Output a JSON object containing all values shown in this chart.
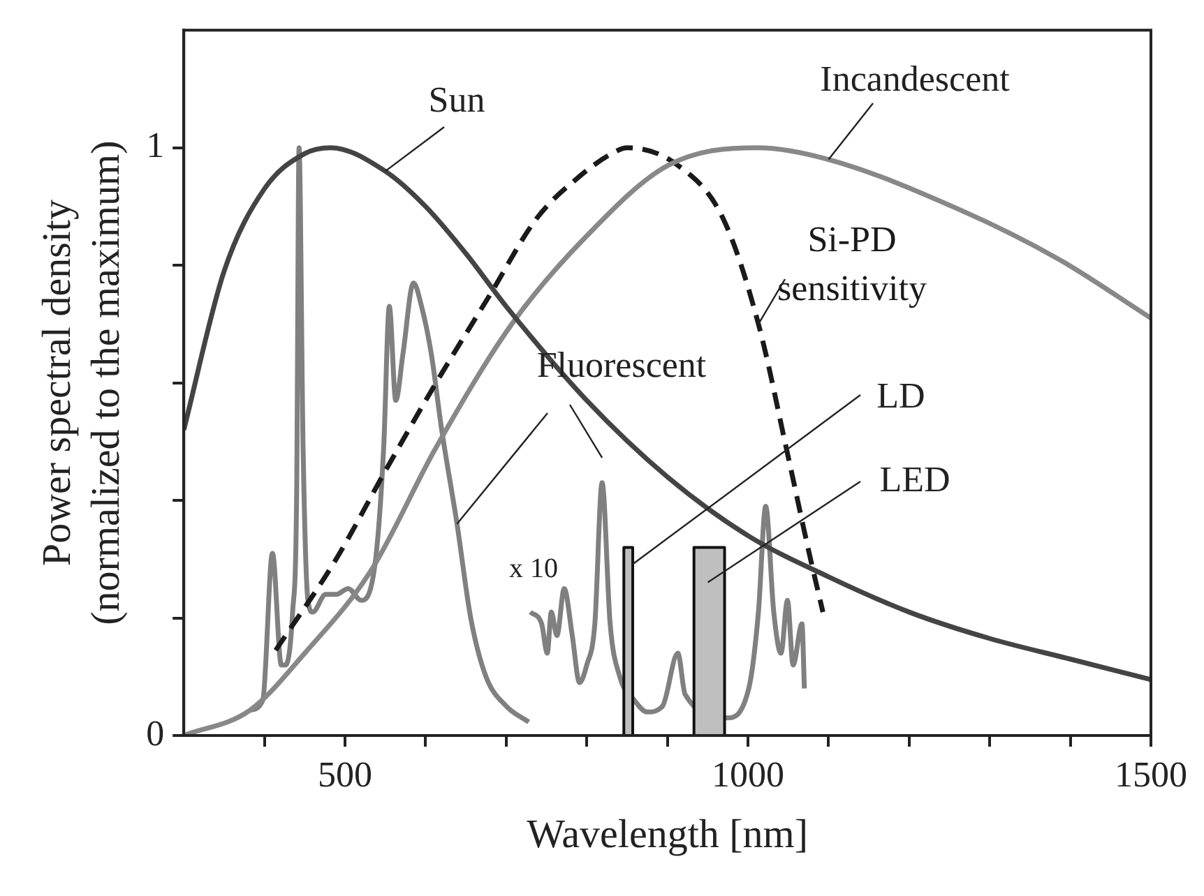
{
  "chart_data": {
    "type": "line",
    "xlabel": "Wavelength [nm]",
    "ylabel": "Power spectral density\n(normalized to the maximum)",
    "xlim": [
      300,
      1500
    ],
    "ylim": [
      0,
      1.2
    ],
    "xticks": [
      {
        "value": 400,
        "label": null
      },
      500,
      {
        "value": 600,
        "label": null
      },
      {
        "value": 700,
        "label": null
      },
      {
        "value": 800,
        "label": null
      },
      {
        "value": 900,
        "label": null
      },
      1000,
      {
        "value": 1100,
        "label": null
      },
      {
        "value": 1200,
        "label": null
      },
      {
        "value": 1300,
        "label": null
      },
      {
        "value": 1400,
        "label": null
      },
      1500
    ],
    "yticks": [
      0,
      {
        "value": 0.2,
        "label": null
      },
      {
        "value": 0.4,
        "label": null
      },
      {
        "value": 0.6,
        "label": null
      },
      {
        "value": 0.8,
        "label": null
      },
      1
    ],
    "grid": false,
    "legend": false,
    "marker": "none",
    "series": [
      {
        "name": "Sun",
        "color": "#444444",
        "x": [
          300,
          350,
          400,
          450,
          482,
          550,
          600,
          650,
          700,
          800,
          900,
          1000,
          1100,
          1200,
          1300,
          1400,
          1500
        ],
        "values": [
          0.52,
          0.79,
          0.93,
          0.99,
          1.0,
          0.96,
          0.9,
          0.82,
          0.73,
          0.57,
          0.44,
          0.34,
          0.27,
          0.21,
          0.165,
          0.13,
          0.095
        ]
      },
      {
        "name": "Incandescent",
        "color": "#888888",
        "x": [
          300,
          382,
          450,
          532,
          613,
          707,
          800,
          901,
          1012,
          1100,
          1262,
          1386,
          1500
        ],
        "values": [
          0,
          0.043,
          0.14,
          0.28,
          0.49,
          0.7,
          0.85,
          0.97,
          1.0,
          0.98,
          0.895,
          0.81,
          0.71
        ]
      },
      {
        "name": "Si-PD\nsensitivity",
        "color": "#1a1a1a",
        "line_style": "dashed",
        "x": [
          414,
          489,
          550,
          613,
          680,
          738,
          790,
          831,
          850,
          913,
          969,
          1013,
          1049,
          1076,
          1093
        ],
        "values": [
          0.145,
          0.3,
          0.45,
          0.6,
          0.75,
          0.88,
          0.95,
          0.99,
          1.0,
          0.97,
          0.88,
          0.7,
          0.48,
          0.31,
          0.21
        ]
      },
      {
        "name": "Fluorescent",
        "color": "#808080",
        "x": [
          382,
          398,
          410,
          421,
          426,
          435,
          440,
          443,
          448,
          454,
          460,
          476,
          489,
          504,
          520,
          538,
          548,
          555,
          563,
          572,
          585,
          595,
          607,
          620,
          639,
          656,
          675,
          700,
          728,
          729,
          730,
          744,
          751,
          756,
          763,
          772,
          782,
          791,
          800,
          810,
          819,
          829,
          841,
          859,
          875,
          894,
          913,
          922,
          974,
          1001,
          1013,
          1022,
          1032,
          1041,
          1049,
          1056,
          1067,
          1070
        ],
        "values": [
          0.043,
          0.06,
          0.31,
          0.12,
          0.12,
          0.21,
          0.41,
          1.0,
          0.49,
          0.23,
          0.21,
          0.24,
          0.24,
          0.25,
          0.23,
          0.3,
          0.49,
          0.73,
          0.57,
          0.65,
          0.77,
          0.73,
          0.65,
          0.52,
          0.36,
          0.2,
          0.1,
          0.05,
          0.023,
          null,
          0.21,
          0.19,
          0.14,
          0.21,
          0.17,
          0.25,
          0.17,
          0.09,
          0.12,
          0.19,
          0.43,
          0.19,
          0.1,
          0.06,
          0.04,
          0.05,
          0.14,
          0.07,
          0.03,
          0.08,
          0.21,
          0.39,
          0.21,
          0.14,
          0.23,
          0.12,
          0.19,
          0.08
        ]
      },
      {
        "name": "LD",
        "type": "area",
        "color": "#bfbfbf",
        "x": [
          846,
          846,
          857,
          857
        ],
        "values": [
          0,
          0.32,
          0.32,
          0
        ]
      },
      {
        "name": "LED",
        "type": "area",
        "color": "#bfbfbf",
        "x": [
          933,
          933,
          971,
          971
        ],
        "values": [
          0,
          0.32,
          0.32,
          0
        ]
      }
    ],
    "annotations": [
      "x 10"
    ]
  }
}
